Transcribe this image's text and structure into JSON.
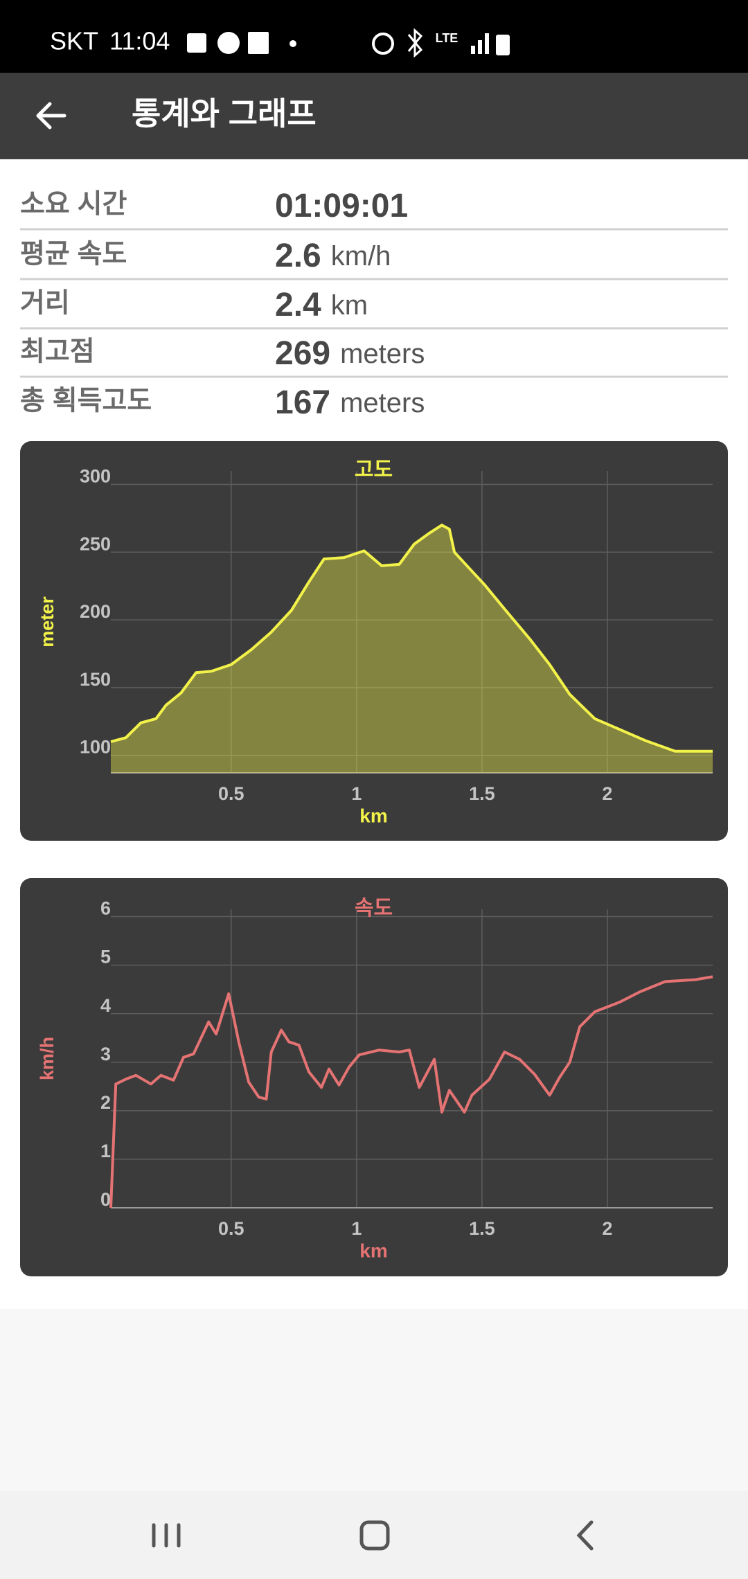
{
  "status_bar": {
    "carrier": "SKT",
    "time": "11:04",
    "network": "LTE"
  },
  "app_bar": {
    "title": "통계와 그래프"
  },
  "stats": {
    "rows": [
      {
        "label": "소요 시간",
        "value": "01:09:01"
      },
      {
        "label": "평균 속도",
        "value": 2.6,
        "unit": "km/h"
      },
      {
        "label": "거리",
        "value": 2.4,
        "unit": "km"
      },
      {
        "label": "최고점",
        "value": 269,
        "unit": "meters"
      },
      {
        "label": "총 획득고도",
        "value": 167,
        "unit": "meters"
      }
    ]
  },
  "chart_data": [
    {
      "type": "area",
      "title": "고도",
      "xlabel": "km",
      "ylabel": "meter",
      "color": "#f2f24a",
      "grid": true,
      "x": [
        0.02,
        0.08,
        0.14,
        0.2,
        0.24,
        0.3,
        0.36,
        0.42,
        0.5,
        0.58,
        0.66,
        0.74,
        0.81,
        0.87,
        0.95,
        1.03,
        1.1,
        1.17,
        1.23,
        1.29,
        1.34,
        1.37,
        1.39,
        1.45,
        1.51,
        1.59,
        1.69,
        1.77,
        1.85,
        1.95,
        2.05,
        2.15,
        2.27,
        2.42
      ],
      "values": [
        110,
        113,
        124,
        127,
        137,
        146,
        161,
        162,
        167,
        178,
        191,
        207,
        228,
        245,
        246,
        251,
        240,
        241,
        256,
        264,
        270,
        267,
        250,
        238,
        226,
        208,
        186,
        167,
        145,
        127,
        119,
        111,
        103,
        103
      ],
      "xlim": [
        0.02,
        2.42
      ],
      "xticks": [
        0.5,
        1,
        1.5,
        2
      ],
      "ylim": [
        87,
        310
      ],
      "yticks": [
        100,
        150,
        200,
        250,
        300
      ]
    },
    {
      "type": "line",
      "title": "속도",
      "xlabel": "km",
      "ylabel": "km/h",
      "color": "#e57373",
      "grid": true,
      "x": [
        0.02,
        0.04,
        0.08,
        0.12,
        0.18,
        0.22,
        0.27,
        0.31,
        0.35,
        0.41,
        0.44,
        0.49,
        0.53,
        0.57,
        0.61,
        0.64,
        0.66,
        0.7,
        0.73,
        0.77,
        0.81,
        0.86,
        0.89,
        0.93,
        0.97,
        1.01,
        1.09,
        1.17,
        1.21,
        1.25,
        1.31,
        1.34,
        1.37,
        1.43,
        1.46,
        1.53,
        1.59,
        1.65,
        1.71,
        1.77,
        1.81,
        1.85,
        1.89,
        1.95,
        2.05,
        2.13,
        2.23,
        2.35,
        2.42
      ],
      "values": [
        0,
        2.55,
        2.65,
        2.73,
        2.55,
        2.73,
        2.63,
        3.1,
        3.17,
        3.83,
        3.58,
        4.41,
        3.42,
        2.59,
        2.28,
        2.24,
        3.21,
        3.66,
        3.42,
        3.35,
        2.8,
        2.48,
        2.86,
        2.53,
        2.9,
        3.15,
        3.25,
        3.21,
        3.25,
        2.48,
        3.06,
        1.97,
        2.42,
        1.97,
        2.32,
        2.65,
        3.21,
        3.06,
        2.75,
        2.32,
        2.69,
        3.0,
        3.73,
        4.04,
        4.24,
        4.45,
        4.66,
        4.7,
        4.76
      ],
      "xlim": [
        0.02,
        2.42
      ],
      "xticks": [
        0.5,
        1,
        1.5,
        2
      ],
      "ylim": [
        0,
        6.15
      ],
      "yticks": [
        0,
        1,
        2,
        3,
        4,
        5,
        6
      ]
    }
  ]
}
